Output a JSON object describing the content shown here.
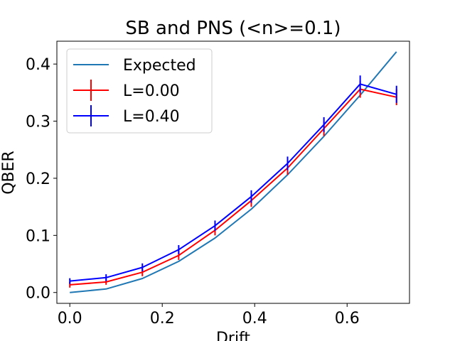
{
  "chart_data": {
    "type": "line",
    "title": "SB and PNS (<n>=0.1)",
    "xlabel": "Drift",
    "ylabel": "QBER",
    "xlim": [
      -0.028,
      0.735
    ],
    "ylim": [
      -0.019,
      0.44
    ],
    "xticks": [
      0.0,
      0.2,
      0.4,
      0.6
    ],
    "xtick_labels": [
      "0.0",
      "0.2",
      "0.4",
      "0.6"
    ],
    "yticks": [
      0.0,
      0.1,
      0.2,
      0.3,
      0.4
    ],
    "ytick_labels": [
      "0.0",
      "0.1",
      "0.2",
      "0.3",
      "0.4"
    ],
    "grid": false,
    "legend_position": "upper-left",
    "series": [
      {
        "name": "Expected",
        "color": "#1f77b4",
        "errorbars": false,
        "x": [
          0.0,
          0.0785,
          0.157,
          0.2356,
          0.3142,
          0.3927,
          0.4712,
          0.5498,
          0.6283,
          0.7069
        ],
        "y": [
          0.0,
          0.0061,
          0.0245,
          0.0545,
          0.0955,
          0.146,
          0.2061,
          0.2735,
          0.3455,
          0.4215
        ]
      },
      {
        "name": "L=0.00",
        "color": "#ff0000",
        "errorbars": true,
        "x": [
          0.0,
          0.0785,
          0.157,
          0.2356,
          0.3142,
          0.3927,
          0.4712,
          0.5498,
          0.6283,
          0.7069
        ],
        "y": [
          0.0135,
          0.0185,
          0.0355,
          0.065,
          0.109,
          0.161,
          0.218,
          0.287,
          0.356,
          0.342
        ],
        "err": [
          0.005,
          0.005,
          0.007,
          0.008,
          0.009,
          0.011,
          0.012,
          0.013,
          0.015,
          0.014
        ]
      },
      {
        "name": "L=0.40",
        "color": "#0000ff",
        "errorbars": true,
        "x": [
          0.0,
          0.0785,
          0.157,
          0.2356,
          0.3142,
          0.3927,
          0.4712,
          0.5498,
          0.6283,
          0.7069
        ],
        "y": [
          0.02,
          0.026,
          0.044,
          0.075,
          0.117,
          0.168,
          0.226,
          0.294,
          0.365,
          0.347
        ],
        "err": [
          0.005,
          0.006,
          0.007,
          0.008,
          0.009,
          0.011,
          0.012,
          0.013,
          0.015,
          0.015
        ]
      }
    ]
  }
}
